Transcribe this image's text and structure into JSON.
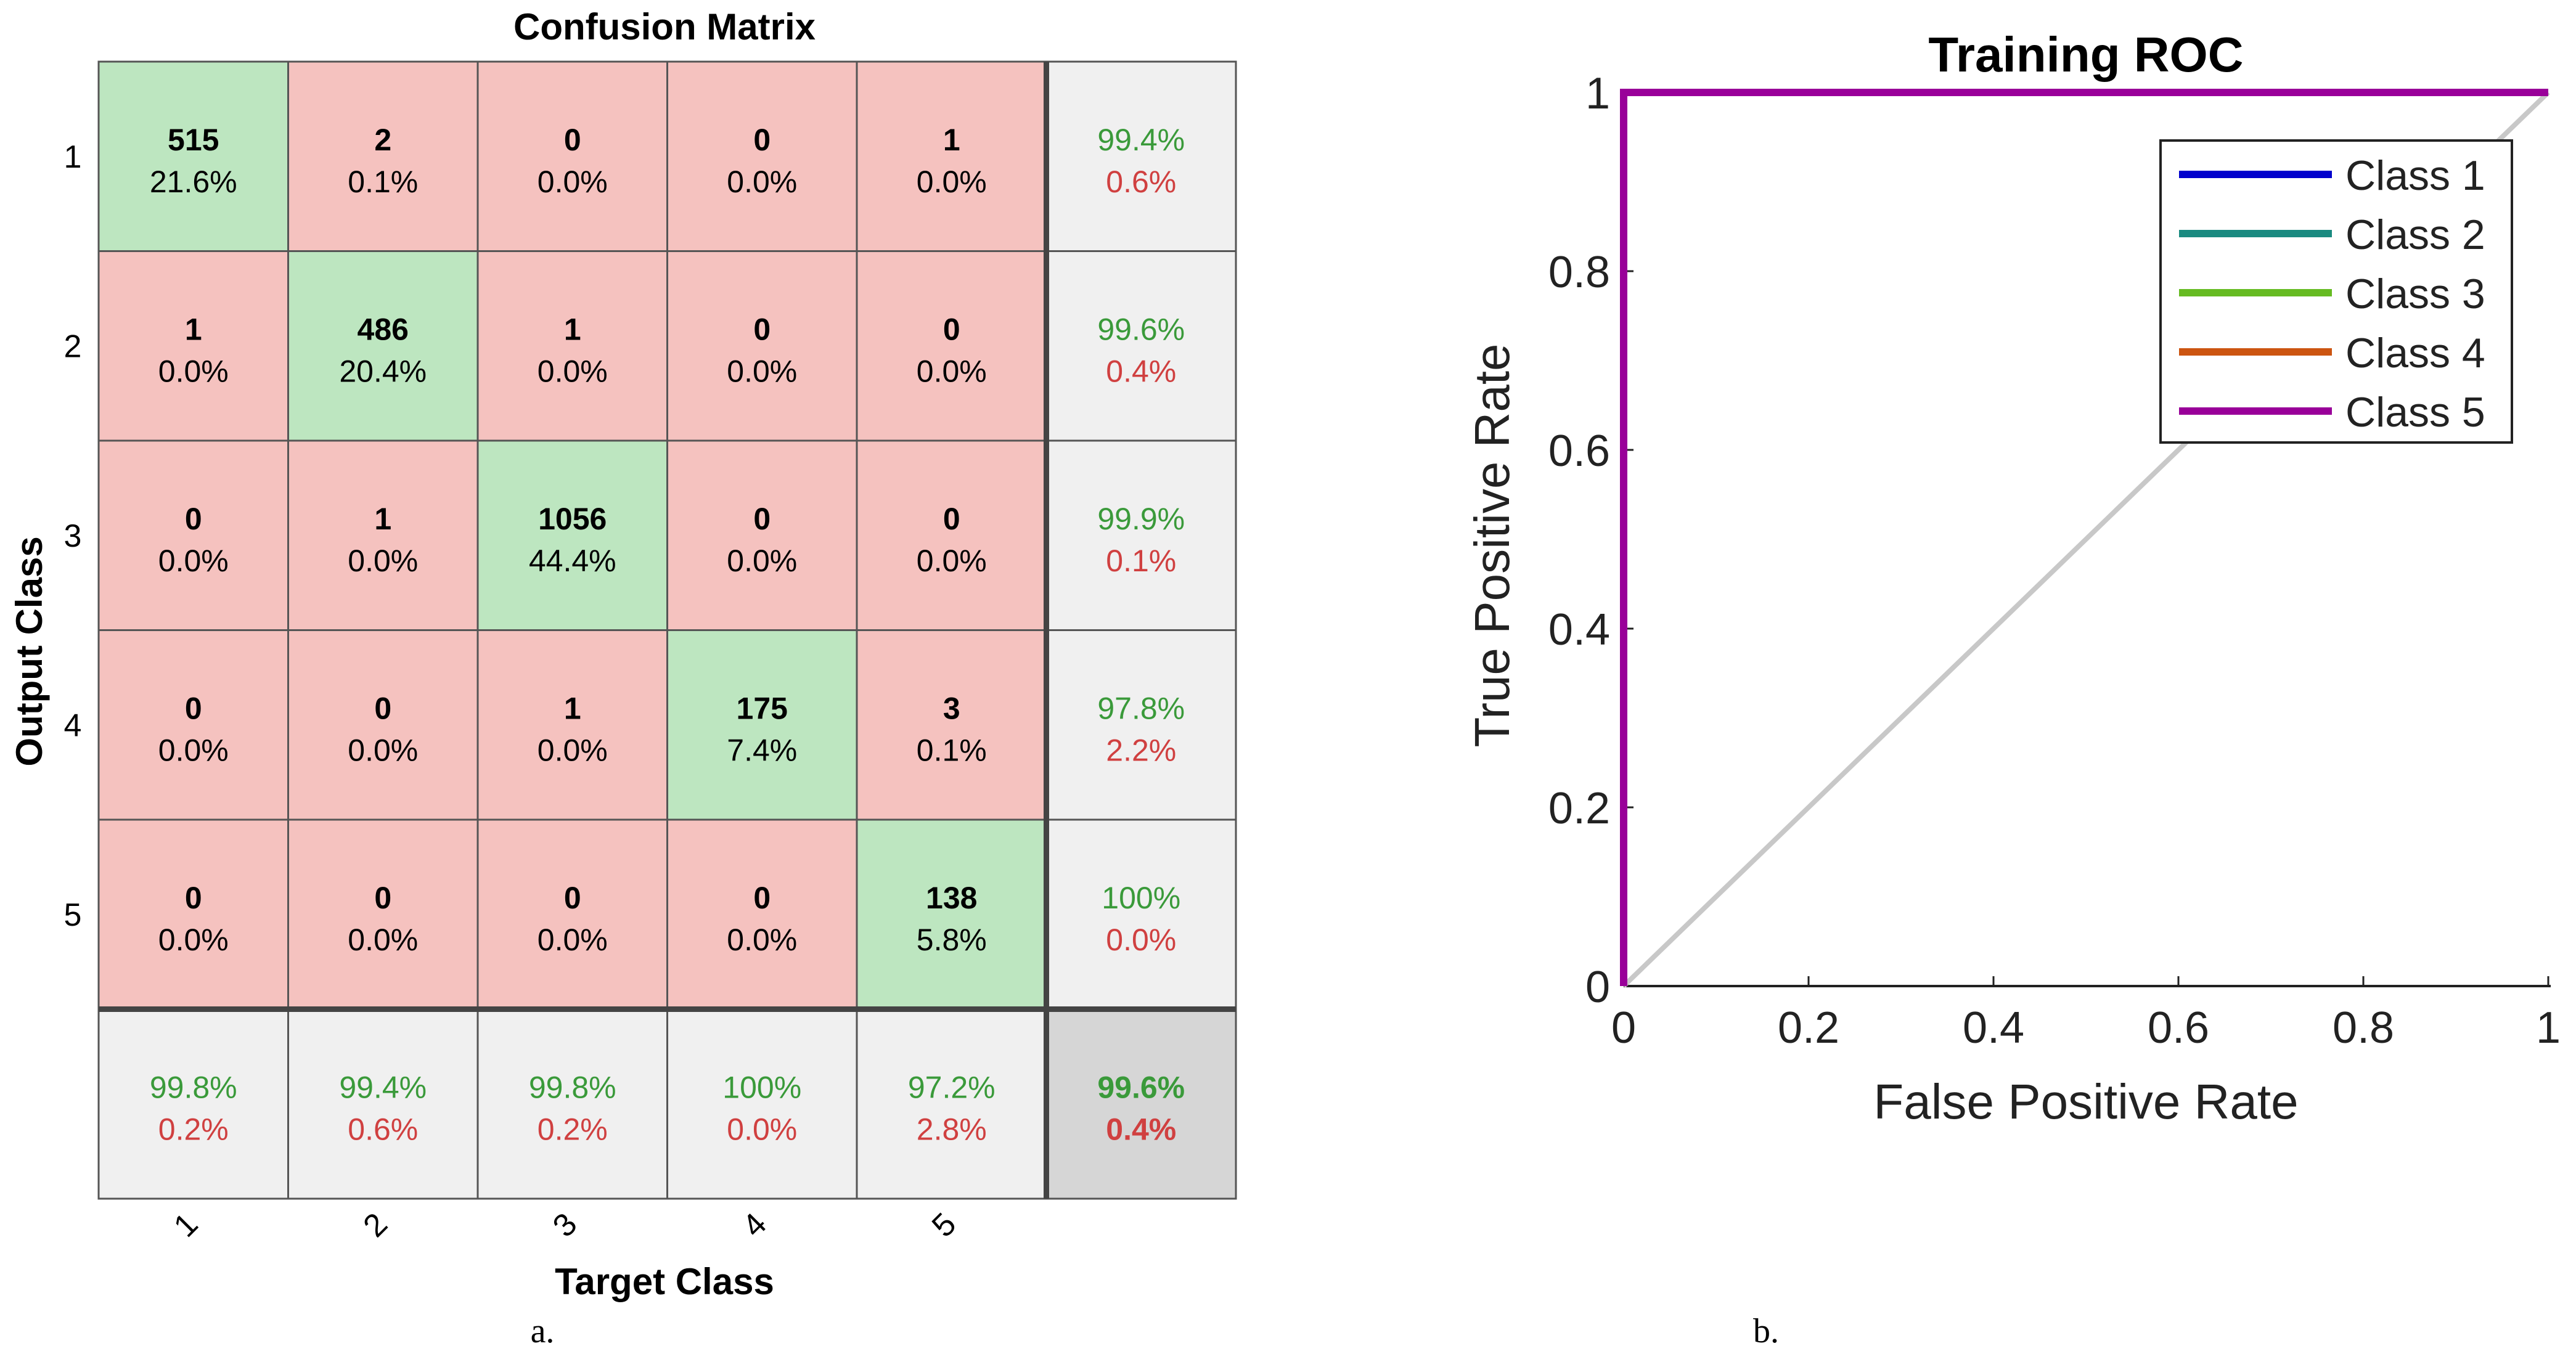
{
  "chart_data": [
    {
      "type": "heatmap",
      "title": "Confusion Matrix",
      "xlabel": "Target Class",
      "ylabel": "Output Class",
      "classes": [
        "1",
        "2",
        "3",
        "4",
        "5"
      ],
      "counts": [
        [
          515,
          2,
          0,
          0,
          1
        ],
        [
          1,
          486,
          1,
          0,
          0
        ],
        [
          0,
          1,
          1056,
          0,
          0
        ],
        [
          0,
          0,
          1,
          175,
          3
        ],
        [
          0,
          0,
          0,
          0,
          138
        ]
      ],
      "percents": [
        [
          "21.6%",
          "0.1%",
          "0.0%",
          "0.0%",
          "0.0%"
        ],
        [
          "0.0%",
          "20.4%",
          "0.0%",
          "0.0%",
          "0.0%"
        ],
        [
          "0.0%",
          "0.0%",
          "44.4%",
          "0.0%",
          "0.0%"
        ],
        [
          "0.0%",
          "0.0%",
          "0.0%",
          "7.4%",
          "0.1%"
        ],
        [
          "0.0%",
          "0.0%",
          "0.0%",
          "0.0%",
          "5.8%"
        ]
      ],
      "row_summary": [
        {
          "correct": "99.4%",
          "error": "0.6%"
        },
        {
          "correct": "99.6%",
          "error": "0.4%"
        },
        {
          "correct": "99.9%",
          "error": "0.1%"
        },
        {
          "correct": "97.8%",
          "error": "2.2%"
        },
        {
          "correct": "100%",
          "error": "0.0%"
        }
      ],
      "col_summary": [
        {
          "correct": "99.8%",
          "error": "0.2%"
        },
        {
          "correct": "99.4%",
          "error": "0.6%"
        },
        {
          "correct": "99.8%",
          "error": "0.2%"
        },
        {
          "correct": "100%",
          "error": "0.0%"
        },
        {
          "correct": "97.2%",
          "error": "2.8%"
        }
      ],
      "overall": {
        "correct": "99.6%",
        "error": "0.4%"
      },
      "caption": "a."
    },
    {
      "type": "line",
      "title": "Training ROC",
      "xlabel": "False Positive Rate",
      "ylabel": "True Positive Rate",
      "xlim": [
        0,
        1
      ],
      "ylim": [
        0,
        1
      ],
      "xticks": [
        0,
        0.2,
        0.4,
        0.6,
        0.8,
        1
      ],
      "yticks": [
        0,
        0.2,
        0.4,
        0.6,
        0.8,
        1
      ],
      "xtick_labels": [
        "0",
        "0.2",
        "0.4",
        "0.6",
        "0.8",
        "1"
      ],
      "ytick_labels": [
        "0",
        "0.2",
        "0.4",
        "0.6",
        "0.8",
        "1"
      ],
      "legend_position": "top-right",
      "reference_line": {
        "x": [
          0,
          1
        ],
        "y": [
          0,
          1
        ],
        "color": "#c8c8c8"
      },
      "series": [
        {
          "name": "Class 1",
          "color": "#0000cc",
          "x": [
            0,
            0,
            1
          ],
          "y": [
            0,
            1,
            1
          ]
        },
        {
          "name": "Class 2",
          "color": "#1a8a80",
          "x": [
            0,
            0,
            1
          ],
          "y": [
            0,
            1,
            1
          ]
        },
        {
          "name": "Class 3",
          "color": "#66bb22",
          "x": [
            0,
            0,
            1
          ],
          "y": [
            0,
            1,
            1
          ]
        },
        {
          "name": "Class 4",
          "color": "#cc5511",
          "x": [
            0,
            0,
            1
          ],
          "y": [
            0,
            1,
            1
          ]
        },
        {
          "name": "Class 5",
          "color": "#990099",
          "x": [
            0,
            0,
            1
          ],
          "y": [
            0,
            1,
            1
          ]
        }
      ],
      "caption": "b."
    }
  ],
  "colors": {
    "correct_cell": "#bde6c0",
    "error_cell": "#f5c2bf",
    "summary_cell": "#f0f0f0",
    "overall_cell": "#d6d6d6",
    "correct_text": "#3a9a3a",
    "error_text": "#d04040"
  }
}
